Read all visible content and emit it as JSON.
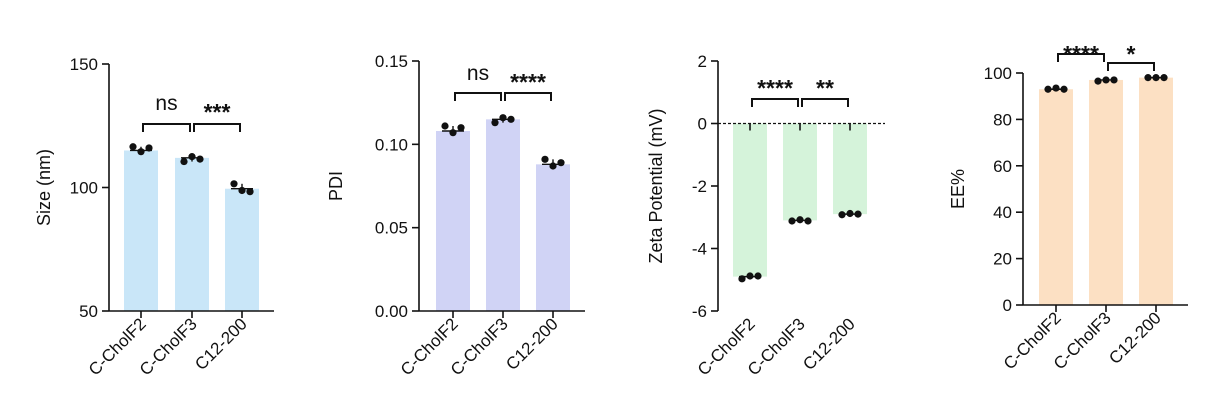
{
  "chart_data": [
    {
      "type": "bar",
      "ylabel": "Size (nm)",
      "ylim": [
        50,
        150
      ],
      "yticks": [
        "50",
        "100",
        "150"
      ],
      "categories": [
        "C-CholF2",
        "C-CholF3",
        "C12-200"
      ],
      "values": [
        115,
        112,
        99.5
      ],
      "points": [
        [
          116.5,
          114.5,
          116
        ],
        [
          110.5,
          112.5,
          111.5
        ],
        [
          101.5,
          98.8,
          98.3
        ]
      ],
      "bar_color": "#c9e6f8",
      "significance": [
        {
          "from": 0,
          "to": 1,
          "label": "ns"
        },
        {
          "from": 1,
          "to": 2,
          "label": "***"
        }
      ]
    },
    {
      "type": "bar",
      "ylabel": "PDI",
      "ylim": [
        0,
        0.15
      ],
      "yticks": [
        "0.00",
        "0.05",
        "0.10",
        "0.15"
      ],
      "categories": [
        "C-CholF2",
        "C-CholF3",
        "C12-200"
      ],
      "values": [
        0.108,
        0.115,
        0.088
      ],
      "points": [
        [
          0.111,
          0.107,
          0.11
        ],
        [
          0.113,
          0.116,
          0.115
        ],
        [
          0.091,
          0.087,
          0.089
        ]
      ],
      "bar_color": "#d0d3f5",
      "significance": [
        {
          "from": 0,
          "to": 1,
          "label": "ns"
        },
        {
          "from": 1,
          "to": 2,
          "label": "****"
        }
      ]
    },
    {
      "type": "bar",
      "ylabel": "Zeta Potential (mV)",
      "ylim": [
        -6,
        2
      ],
      "yticks": [
        "-6",
        "-4",
        "-2",
        "0",
        "2"
      ],
      "categories": [
        "C-CholF2",
        "C-CholF3",
        "C12-200"
      ],
      "values": [
        -4.9,
        -3.1,
        -2.9
      ],
      "points": [
        [
          -4.97,
          -4.88,
          -4.88
        ],
        [
          -3.12,
          -3.08,
          -3.12
        ],
        [
          -2.92,
          -2.88,
          -2.9
        ]
      ],
      "bar_color": "#d5f3da",
      "significance": [
        {
          "from": 0,
          "to": 1,
          "label": "****"
        },
        {
          "from": 1,
          "to": 2,
          "label": "**"
        }
      ]
    },
    {
      "type": "bar",
      "ylabel": "EE%",
      "ylim": [
        0,
        100
      ],
      "yticks": [
        "0",
        "20",
        "40",
        "60",
        "80",
        "100"
      ],
      "categories": [
        "C-CholF2",
        "C-CholF3",
        "C12-200"
      ],
      "values": [
        93,
        97,
        98
      ],
      "points": [
        [
          93,
          93.5,
          93
        ],
        [
          96.5,
          97,
          97
        ],
        [
          98,
          98,
          98
        ]
      ],
      "bar_color": "#fce0c3",
      "significance": [
        {
          "from": 0,
          "to": 1,
          "label": "****"
        },
        {
          "from": 1,
          "to": 2,
          "label": "*"
        }
      ]
    }
  ]
}
